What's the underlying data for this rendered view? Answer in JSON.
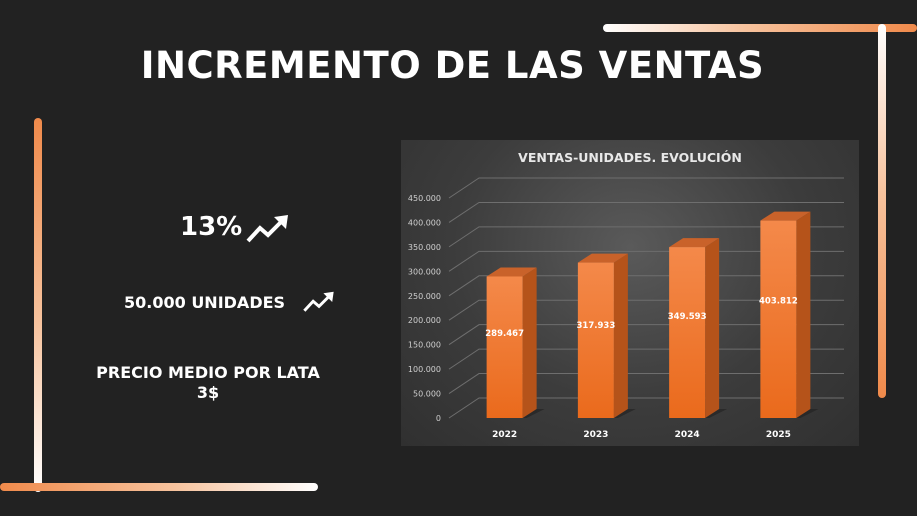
{
  "page": {
    "title": "INCREMENTO DE LAS VENTAS",
    "stats": {
      "percent": "13%",
      "units": "50.000 UNIDADES",
      "price_label": "PRECIO MEDIO POR LATA",
      "price_value": "3$"
    },
    "icons": [
      "trending-up-icon",
      "trending-up-icon"
    ],
    "colors": {
      "accent": "#f08a4b",
      "bar": "#f07a30",
      "background": "#222222"
    }
  },
  "chart_data": {
    "type": "bar",
    "title": "VENTAS-UNIDADES. EVOLUCIÓN",
    "categories": [
      "2022",
      "2023",
      "2024",
      "2025"
    ],
    "values": [
      289467,
      317933,
      349593,
      403812
    ],
    "value_labels": [
      "289.467",
      "317.933",
      "349.593",
      "403.812"
    ],
    "ylim": [
      0,
      450000
    ],
    "yticks": [
      0,
      50000,
      100000,
      150000,
      200000,
      250000,
      300000,
      350000,
      400000,
      450000
    ],
    "ytick_labels": [
      "0",
      "50.000",
      "100.000",
      "150.000",
      "200.000",
      "250.000",
      "300.000",
      "350.000",
      "400.000",
      "450.000"
    ],
    "grid": true,
    "legend": "none",
    "style": "3d-column"
  }
}
